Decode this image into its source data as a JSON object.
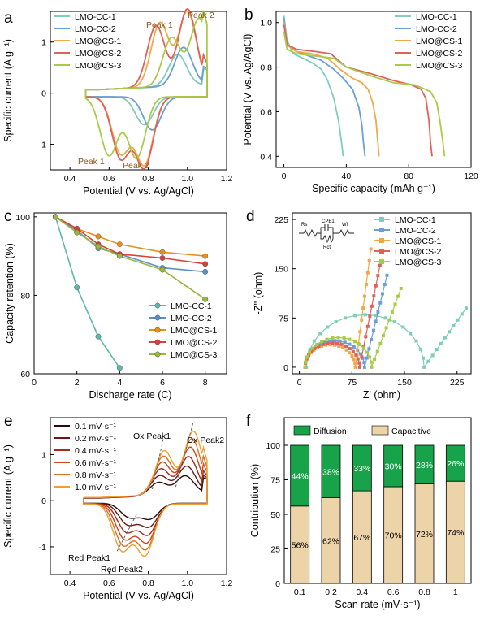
{
  "panels": {
    "a": {
      "label": "a",
      "legend": [
        "LMO-CC-1",
        "LMO-CC-2",
        "LMO@CS-1",
        "LMO@CS-2",
        "LMO@CS-3"
      ],
      "annotations": [
        "Peak 2",
        "Peak 1",
        "Peak 1",
        "Peak 2"
      ]
    },
    "b": {
      "label": "b"
    },
    "c": {
      "label": "c"
    },
    "d": {
      "label": "d"
    },
    "e": {
      "label": "e",
      "legend": [
        "0.1 mV·s⁻¹",
        "0.2 mV·s⁻¹",
        "0.4 mV·s⁻¹",
        "0.6 mV·s⁻¹",
        "0.8 mV·s⁻¹",
        "1.0 mV·s⁻¹"
      ],
      "annotations": [
        "Ox Peak1",
        "Ox Peak2",
        "Red Peak1",
        "Red Peak2"
      ]
    },
    "f": {
      "label": "f"
    }
  },
  "chart_data": [
    {
      "panel": "a",
      "type": "line",
      "xlabel": "Potential (V vs. Ag/AgCl)",
      "ylabel": "Specific current (A g⁻¹)",
      "xlim": [
        0.3,
        1.2
      ],
      "ylim": [
        -1.5,
        1.6
      ],
      "xticks": [
        "0.4",
        "0.6",
        "0.8",
        "1.0",
        "1.2"
      ],
      "yticks": [
        "-1",
        "0",
        "1"
      ],
      "colors": [
        "#7fcdbb",
        "#6a9fd8",
        "#f0a848",
        "#e0605a",
        "#a8cc48"
      ],
      "series": [
        {
          "name": "LMO-CC-1",
          "ox_peak": [
            0.95,
            0.62
          ],
          "red_peak": [
            0.78,
            -0.55
          ]
        },
        {
          "name": "LMO-CC-2",
          "ox_peak": [
            0.98,
            0.75
          ],
          "red_peak": [
            0.82,
            -0.65
          ]
        },
        {
          "name": "LMO@CS-1",
          "ox_peaks": [
            [
              0.86,
              1.25
            ],
            [
              1.0,
              1.45
            ]
          ],
          "red_peaks": [
            [
              0.66,
              -1.1
            ],
            [
              0.78,
              -1.32
            ]
          ]
        },
        {
          "name": "LMO@CS-2",
          "ox_peaks": [
            [
              0.84,
              1.2
            ],
            [
              1.0,
              1.5
            ]
          ],
          "red_peaks": [
            [
              0.66,
              -1.2
            ],
            [
              0.78,
              -1.38
            ]
          ]
        },
        {
          "name": "LMO@CS-3",
          "ox_peaks": [
            [
              0.92,
              0.95
            ],
            [
              1.06,
              1.3
            ]
          ],
          "red_peaks": [
            [
              0.6,
              -1.15
            ],
            [
              0.74,
              -1.2
            ]
          ]
        }
      ]
    },
    {
      "panel": "b",
      "type": "line",
      "xlabel": "Specific capacity (mAh g⁻¹)",
      "ylabel": "Potential (V vs. Ag/AgCl)",
      "xlim": [
        -5,
        120
      ],
      "ylim": [
        0.35,
        1.05
      ],
      "xticks": [
        "0",
        "40",
        "80",
        "120"
      ],
      "yticks": [
        "0.4",
        "0.6",
        "0.8",
        "1.0"
      ],
      "colors": [
        "#7fcdbb",
        "#6a9fd8",
        "#f0a848",
        "#e0605a",
        "#a8cc48"
      ],
      "series": [
        {
          "name": "LMO-CC-1",
          "x": [
            0,
            2,
            6,
            12,
            18,
            24,
            28,
            32,
            35,
            37,
            38
          ],
          "y": [
            1.03,
            0.92,
            0.86,
            0.84,
            0.82,
            0.79,
            0.74,
            0.66,
            0.56,
            0.46,
            0.4
          ]
        },
        {
          "name": "LMO-CC-2",
          "x": [
            0,
            2,
            8,
            16,
            24,
            32,
            38,
            44,
            48,
            50,
            51,
            52
          ],
          "y": [
            1.02,
            0.9,
            0.87,
            0.85,
            0.83,
            0.79,
            0.75,
            0.7,
            0.62,
            0.54,
            0.46,
            0.4
          ]
        },
        {
          "name": "LMO@CS-1",
          "x": [
            0,
            2,
            8,
            18,
            28,
            36,
            44,
            50,
            54,
            57,
            59,
            60,
            61
          ],
          "y": [
            1.0,
            0.9,
            0.87,
            0.86,
            0.84,
            0.79,
            0.75,
            0.73,
            0.7,
            0.64,
            0.56,
            0.48,
            0.4
          ]
        },
        {
          "name": "LMO@CS-2",
          "x": [
            0,
            2,
            8,
            20,
            30,
            40,
            56,
            70,
            82,
            88,
            91,
            93,
            94,
            95
          ],
          "y": [
            0.99,
            0.9,
            0.88,
            0.87,
            0.86,
            0.8,
            0.77,
            0.74,
            0.72,
            0.7,
            0.66,
            0.56,
            0.46,
            0.4
          ]
        },
        {
          "name": "LMO@CS-3",
          "x": [
            0,
            2,
            8,
            20,
            32,
            40,
            56,
            70,
            84,
            94,
            98,
            100,
            102,
            103
          ],
          "y": [
            0.96,
            0.88,
            0.86,
            0.85,
            0.84,
            0.8,
            0.76,
            0.73,
            0.72,
            0.69,
            0.64,
            0.56,
            0.46,
            0.4
          ]
        }
      ]
    },
    {
      "panel": "c",
      "type": "line",
      "xlabel": "Discharge rate (C)",
      "ylabel": "Capacity retention (%)",
      "xlim": [
        0,
        9
      ],
      "ylim": [
        60,
        101
      ],
      "xticks": [
        "0",
        "2",
        "4",
        "6",
        "8"
      ],
      "yticks": [
        "60",
        "80",
        "100"
      ],
      "colors": [
        "#5cb8a8",
        "#5a90c8",
        "#e8901a",
        "#d8403c",
        "#98b838"
      ],
      "series": [
        {
          "name": "LMO-CC-1",
          "x": [
            1,
            2,
            3,
            4
          ],
          "y": [
            100,
            82,
            69.5,
            61.5
          ]
        },
        {
          "name": "LMO-CC-2",
          "x": [
            1,
            2,
            3,
            4,
            6,
            8
          ],
          "y": [
            100,
            96.5,
            92,
            90.5,
            87,
            86
          ]
        },
        {
          "name": "LMO@CS-1",
          "x": [
            1,
            2,
            3,
            4,
            6,
            8
          ],
          "y": [
            100,
            97,
            95,
            93,
            91,
            90
          ]
        },
        {
          "name": "LMO@CS-2",
          "x": [
            1,
            2,
            3,
            4,
            6,
            8
          ],
          "y": [
            100,
            97,
            93,
            90.5,
            89.5,
            88
          ]
        },
        {
          "name": "LMO@CS-3",
          "x": [
            1,
            2,
            3,
            4,
            6,
            8
          ],
          "y": [
            100,
            96,
            92.5,
            90,
            86.5,
            79
          ]
        }
      ]
    },
    {
      "panel": "d",
      "type": "scatter",
      "xlabel": "Z' (ohm)",
      "ylabel": "-Z'' (ohm)",
      "xlim": [
        -10,
        245
      ],
      "ylim": [
        -10,
        235
      ],
      "xticks": [
        "0",
        "75",
        "150",
        "225"
      ],
      "yticks": [
        "0",
        "75",
        "150",
        "225"
      ],
      "inset_labels": [
        "Rs",
        "CPE1",
        "Rct",
        "Wf"
      ],
      "colors": [
        "#7fcdbb",
        "#6a9fd8",
        "#f0a848",
        "#e0605a",
        "#a8cc48"
      ],
      "series": [
        {
          "name": "LMO-CC-1",
          "rs": 10,
          "rct": 168,
          "tail_end": [
            238,
            90
          ]
        },
        {
          "name": "LMO-CC-2",
          "rs": 8,
          "rct": 85,
          "tail_end": [
            125,
            140
          ]
        },
        {
          "name": "LMO@CS-1",
          "rs": 8,
          "rct": 72,
          "tail_end": [
            102,
            180
          ]
        },
        {
          "name": "LMO@CS-2",
          "rs": 8,
          "rct": 78,
          "tail_end": [
            115,
            155
          ]
        },
        {
          "name": "LMO@CS-3",
          "rs": 8,
          "rct": 95,
          "tail_end": [
            145,
            120
          ]
        }
      ]
    },
    {
      "panel": "e",
      "type": "line",
      "xlabel": "Potential (V vs. Ag/AgCl)",
      "ylabel": "Specific current (A g⁻¹)",
      "xlim": [
        0.3,
        1.2
      ],
      "ylim": [
        -1.6,
        1.8
      ],
      "xticks": [
        "0.4",
        "0.6",
        "0.8",
        "1.0",
        "1.2"
      ],
      "yticks": [
        "-1",
        "0",
        "1"
      ],
      "colors": [
        "#2a0a0a",
        "#6a1a14",
        "#a42a1c",
        "#cc4418",
        "#e07020",
        "#f0a030"
      ],
      "series": [
        {
          "name": "0.1 mV·s⁻¹",
          "scale": 0.3
        },
        {
          "name": "0.2 mV·s⁻¹",
          "scale": 0.45
        },
        {
          "name": "0.4 mV·s⁻¹",
          "scale": 0.6
        },
        {
          "name": "0.6 mV·s⁻¹",
          "scale": 0.75
        },
        {
          "name": "0.8 mV·s⁻¹",
          "scale": 0.88
        },
        {
          "name": "1.0 mV·s⁻¹",
          "scale": 1.0
        }
      ]
    },
    {
      "panel": "f",
      "type": "bar",
      "xlabel": "Scan rate (mV·s⁻¹)",
      "ylabel": "Contribution (%)",
      "ylim": [
        0,
        120
      ],
      "yticks": [
        "0",
        "25",
        "50",
        "75",
        "100"
      ],
      "categories": [
        "0.1",
        "0.2",
        "0.4",
        "0.6",
        "0.8",
        "1"
      ],
      "legend_placement": "top",
      "colors": {
        "Diffusion": "#17a34a",
        "Capacitive": "#ecd4a8"
      },
      "series": [
        {
          "name": "Capacitive",
          "values": [
            56,
            62,
            67,
            70,
            72,
            74
          ],
          "labels": [
            "56%",
            "62%",
            "67%",
            "70%",
            "72%",
            "74%"
          ]
        },
        {
          "name": "Diffusion",
          "values": [
            44,
            38,
            33,
            30,
            28,
            26
          ],
          "labels": [
            "44%",
            "38%",
            "33%",
            "30%",
            "28%",
            "26%"
          ]
        }
      ]
    }
  ]
}
